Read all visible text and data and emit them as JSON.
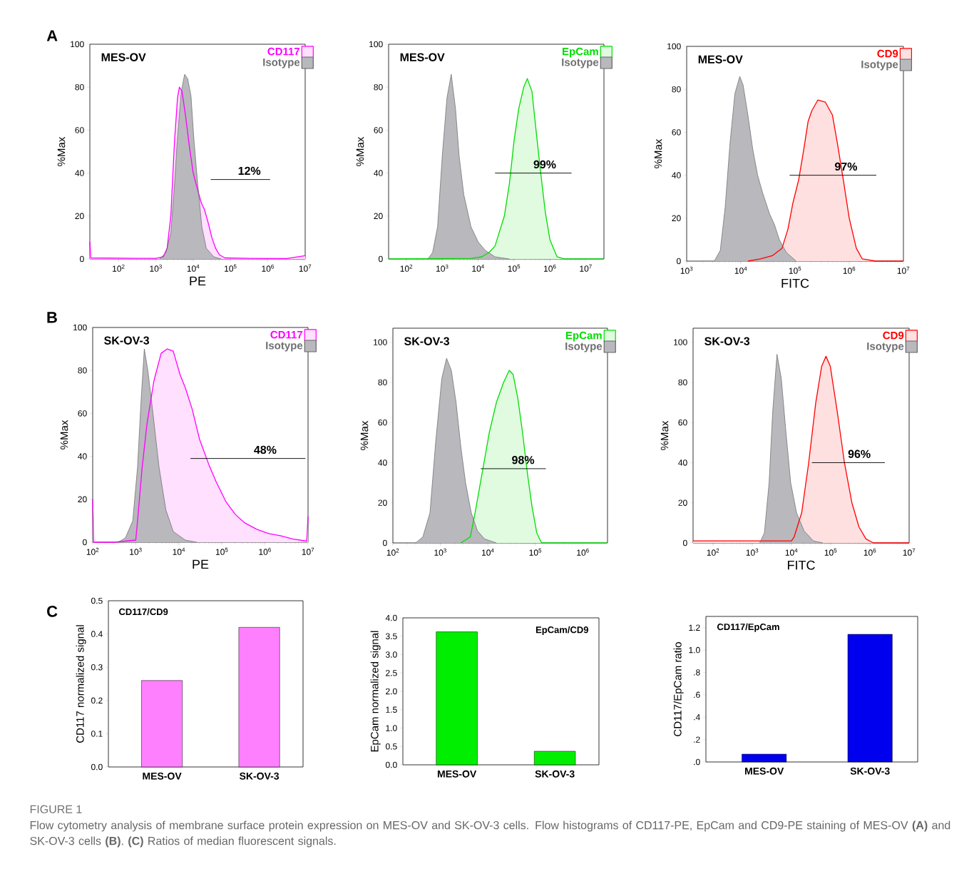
{
  "chart_data": [
    {
      "type": "area",
      "title": "A",
      "subtitle": "MES-OV",
      "xlabel": "PE",
      "ylabel": "%Max",
      "log": "x",
      "legend": "top right",
      "xlim": [
        17,
        10000000
      ],
      "ylim": [
        0,
        100
      ],
      "xticks": [
        {
          "value": 100,
          "label": "10$^{2}$"
        },
        {
          "value": 1000,
          "label": "10$^{3}$"
        },
        {
          "value": 10000,
          "label": "10$^{4}$"
        },
        {
          "value": 100000,
          "label": "10$^{5}$"
        },
        {
          "value": 1000000,
          "label": "10$^{6}$"
        },
        {
          "value": 10000000,
          "label": "10$^{7}$"
        }
      ],
      "yticks": [
        0,
        20,
        40,
        60,
        80,
        100
      ],
      "series": [
        {
          "name": "CD117",
          "color": "#ff00ff",
          "x": [
            17,
            18,
            316,
            1000,
            1580,
            2000,
            2510,
            3160,
            3800,
            4270,
            5010,
            6310,
            7940,
            10000,
            13200,
            16600,
            20000,
            25100,
            31600,
            39800,
            50100,
            70800,
            316000,
            3160000,
            10000000
          ],
          "values": [
            8,
            0.5,
            0.3,
            0.3,
            1,
            5,
            20,
            55,
            75,
            80,
            78,
            66,
            52,
            40,
            32,
            26,
            23,
            17,
            10,
            5,
            2,
            0.5,
            0.3,
            0.2,
            1.5
          ]
        },
        {
          "name": "Isotype",
          "color": "#b9b8bd",
          "x": [
            1260,
            1860,
            2510,
            3160,
            3720,
            4790,
            5890,
            7080,
            8710,
            10500,
            13200,
            17000,
            22400,
            35500,
            56200
          ],
          "values": [
            0,
            3,
            12,
            35,
            55,
            78,
            86,
            84,
            76,
            55,
            35,
            15,
            5,
            1,
            0
          ]
        },
        {
          "type": "line",
          "color": "#000000",
          "x": [
            29500,
            1150000
          ],
          "values": [
            37,
            37
          ]
        }
      ],
      "annotations": [
        "12%"
      ]
    },
    {
      "type": "area",
      "subtitle": "MES-OV",
      "ylabel": "%Max",
      "log": "x",
      "legend": "top right",
      "xlim": [
        32,
        32000000
      ],
      "ylim": [
        0,
        100
      ],
      "xticks": [
        {
          "value": 100,
          "label": "10$^{2}$"
        },
        {
          "value": 1000,
          "label": "10$^{3}$"
        },
        {
          "value": 10000,
          "label": "10$^{4}$"
        },
        {
          "value": 100000,
          "label": "10$^{5}$"
        },
        {
          "value": 1000000,
          "label": "10$^{6}$"
        },
        {
          "value": 10000000,
          "label": "10$^{7}$"
        }
      ],
      "yticks": [
        0,
        20,
        40,
        60,
        80,
        100
      ],
      "series": [
        {
          "name": "EpCam",
          "color": "#00dd00",
          "x": [
            32,
            6310,
            12600,
            20000,
            29500,
            53700,
            74100,
            100000,
            135000,
            186000,
            234000,
            316000,
            398000,
            537000,
            741000,
            1000000,
            1580000,
            2510000,
            31600000
          ],
          "values": [
            0,
            0.3,
            1,
            3,
            6,
            20,
            35,
            55,
            70,
            80,
            84,
            78,
            62,
            42,
            22,
            9,
            1,
            0,
            0
          ]
        },
        {
          "name": "Isotype",
          "color": "#b9b8bd",
          "x": [
            398,
            537,
            741,
            1000,
            1350,
            1780,
            2340,
            2950,
            3980,
            6310,
            10000,
            15800,
            29500,
            74100
          ],
          "values": [
            0,
            3,
            15,
            48,
            75,
            86,
            70,
            48,
            30,
            15,
            8,
            4,
            1,
            0
          ]
        },
        {
          "type": "line",
          "color": "#000000",
          "x": [
            29500,
            4000000
          ],
          "values": [
            40,
            40
          ]
        }
      ],
      "annotations": [
        "99%"
      ]
    },
    {
      "type": "area",
      "subtitle": "MES-OV",
      "xlabel": "FITC",
      "ylabel": "%Max",
      "log": "x",
      "legend": "top right",
      "xlim": [
        1000,
        10000000
      ],
      "ylim": [
        0,
        100
      ],
      "xticks": [
        {
          "value": 1000,
          "label": "10$^{3}$"
        },
        {
          "value": 10000,
          "label": "10$^{4}$"
        },
        {
          "value": 100000,
          "label": "10$^{5}$"
        },
        {
          "value": 1000000,
          "label": "10$^{6}$"
        },
        {
          "value": 10000000,
          "label": "10$^{7}$"
        }
      ],
      "yticks": [
        0,
        20,
        40,
        60,
        80,
        100
      ],
      "series": [
        {
          "name": "CD9",
          "color": "#ff0000",
          "x": [
            13500,
            22900,
            38000,
            57500,
            74100,
            91200,
            117000,
            145000,
            174000,
            204000,
            263000,
            363000,
            490000,
            603000,
            776000,
            1000000,
            1350000,
            1740000,
            3090000,
            10000000
          ],
          "values": [
            0,
            1,
            2.5,
            6,
            15,
            27,
            38,
            52,
            65,
            70,
            75,
            74,
            68,
            55,
            38,
            20,
            6,
            1,
            0,
            0
          ]
        },
        {
          "name": "Isotype",
          "color": "#b9b8bd",
          "x": [
            3240,
            4170,
            5130,
            6310,
            7760,
            9550,
            11000,
            13500,
            16600,
            20400,
            25100,
            33900,
            41700,
            51300,
            69200,
            105000
          ],
          "values": [
            0,
            5,
            25,
            55,
            78,
            86,
            82,
            68,
            52,
            40,
            32,
            22,
            17,
            10,
            4,
            0
          ]
        },
        {
          "type": "line",
          "color": "#000000",
          "x": [
            79400,
            3160000
          ],
          "values": [
            40,
            40
          ]
        }
      ],
      "annotations": [
        "97%"
      ]
    },
    {
      "type": "area",
      "title": "B",
      "subtitle": "SK-OV-3",
      "xlabel": "PE",
      "ylabel": "%Max",
      "log": "x",
      "legend": "top right",
      "xlim": [
        100,
        10000000
      ],
      "ylim": [
        0,
        100
      ],
      "xticks": [
        {
          "value": 100,
          "label": "10$^{2}$"
        },
        {
          "value": 1000,
          "label": "10$^{3}$"
        },
        {
          "value": 10000,
          "label": "10$^{4}$"
        },
        {
          "value": 100000,
          "label": "10$^{5}$"
        },
        {
          "value": 1000000,
          "label": "10$^{6}$"
        },
        {
          "value": 10000000,
          "label": "10$^{7}$"
        }
      ],
      "yticks": [
        0,
        20,
        40,
        60,
        80,
        100
      ],
      "series": [
        {
          "name": "CD117",
          "color": "#ff00ff",
          "x": [
            100,
            105,
            316,
            1000,
            1100,
            1410,
            1820,
            2630,
            3890,
            5370,
            7410,
            10700,
            14100,
            20400,
            30200,
            50100,
            74100,
            123000,
            204000,
            339000,
            646000,
            1230000,
            2290000,
            4370000,
            9330000,
            10000000
          ],
          "values": [
            20,
            0,
            0,
            1,
            10,
            35,
            55,
            75,
            88,
            90,
            89,
            78,
            72,
            62,
            48,
            36,
            28,
            19,
            13,
            9,
            6,
            4,
            3,
            1.5,
            0.5,
            12
          ]
        },
        {
          "name": "Isotype",
          "color": "#b9b8bd",
          "x": [
            389,
            575,
            851,
            1100,
            1320,
            1580,
            1910,
            2510,
            3470,
            5010,
            7410,
            14100,
            26300
          ],
          "values": [
            0,
            2,
            10,
            35,
            65,
            90,
            80,
            60,
            35,
            15,
            5,
            1,
            0
          ]
        },
        {
          "type": "line",
          "color": "#000000",
          "x": [
            18600,
            8710000
          ],
          "values": [
            39,
            39
          ]
        }
      ],
      "annotations": [
        "48%"
      ]
    },
    {
      "type": "area",
      "subtitle": "SK-OV-3",
      "ylabel": "%Max",
      "log": "x",
      "legend": "top right",
      "xlim": [
        100,
        3300000
      ],
      "ylim": [
        0,
        107
      ],
      "xticks": [
        {
          "value": 100,
          "label": "10$^{2}$"
        },
        {
          "value": 1000,
          "label": "10$^{3}$"
        },
        {
          "value": 10000,
          "label": "10$^{4}$"
        },
        {
          "value": 100000,
          "label": "10$^{5}$"
        },
        {
          "value": 1000000,
          "label": "10$^{6}$"
        }
      ],
      "yticks": [
        0,
        20,
        40,
        60,
        80,
        100
      ],
      "series": [
        {
          "name": "EpCam",
          "color": "#00dd00",
          "x": [
            2690,
            4270,
            5370,
            7590,
            10700,
            15100,
            21400,
            28200,
            33900,
            42700,
            53700,
            67600,
            85100,
            107000,
            135000,
            3160000
          ],
          "values": [
            0,
            3,
            15,
            35,
            55,
            70,
            80,
            86,
            84,
            72,
            55,
            35,
            18,
            5,
            0,
            0
          ]
        },
        {
          "name": "Isotype",
          "color": "#b9b8bd",
          "x": [
            302,
            427,
            603,
            794,
            1070,
            1350,
            1700,
            2140,
            2690,
            3390,
            4470,
            6030,
            8510,
            15100
          ],
          "values": [
            0,
            3,
            15,
            50,
            82,
            92,
            86,
            70,
            48,
            30,
            15,
            6,
            2,
            0
          ]
        },
        {
          "type": "line",
          "color": "#000000",
          "x": [
            7080,
            166000
          ],
          "values": [
            37,
            37
          ]
        }
      ],
      "annotations": [
        "98%"
      ]
    },
    {
      "type": "area",
      "subtitle": "SK-OV-3",
      "xlabel": "FITC",
      "ylabel": "%Max",
      "log": "x",
      "legend": "top right",
      "xlim": [
        31,
        10000000
      ],
      "ylim": [
        0,
        107
      ],
      "xticks": [
        {
          "value": 100,
          "label": "10$^{2}$"
        },
        {
          "value": 1000,
          "label": "10$^{3}$"
        },
        {
          "value": 10000,
          "label": "10$^{4}$"
        },
        {
          "value": 100000,
          "label": "10$^{5}$"
        },
        {
          "value": 1000000,
          "label": "10$^{6}$"
        },
        {
          "value": 10000000,
          "label": "10$^{7}$"
        }
      ],
      "yticks": [
        0,
        20,
        40,
        60,
        80,
        100
      ],
      "series": [
        {
          "name": "CD9",
          "color": "#ff0000",
          "x": [
            31,
            10000,
            11700,
            18200,
            27500,
            41700,
            58900,
            75900,
            97700,
            148000,
            224000,
            347000,
            525000,
            794000,
            1230000,
            10000000
          ],
          "values": [
            1,
            1,
            3,
            15,
            40,
            70,
            88,
            93,
            88,
            65,
            40,
            20,
            8,
            2,
            0,
            0
          ]
        },
        {
          "name": "Isotype",
          "color": "#b9b8bd",
          "x": [
            1550,
            2040,
            2690,
            3310,
            4270,
            5500,
            7240,
            9550,
            13500,
            20900,
            36300,
            63100
          ],
          "values": [
            0,
            5,
            30,
            65,
            94,
            82,
            55,
            30,
            15,
            6,
            1,
            0
          ]
        },
        {
          "type": "line",
          "color": "#000000",
          "x": [
            33100,
            2400000
          ],
          "values": [
            40,
            40
          ]
        }
      ],
      "annotations": [
        "96%"
      ]
    },
    {
      "type": "bar",
      "title": "C",
      "subtitle": "CD117/CD9",
      "ylabel": "CD117 normalized signal",
      "categories": [
        "MES-OV",
        "SK-OV-3"
      ],
      "values": [
        0.26,
        0.42
      ],
      "color": "#ff80ff",
      "ylim": [
        0,
        0.5
      ],
      "yticks": [
        {
          "value": 0,
          "label": "0.0"
        },
        0.1,
        0.2,
        0.3,
        0.4,
        0.5
      ]
    },
    {
      "type": "bar",
      "subtitle": "EpCam/CD9",
      "ylabel": "EpCam normalized signal",
      "categories": [
        "MES-OV",
        "SK-OV-3"
      ],
      "values": [
        3.62,
        0.37
      ],
      "color": "#00ee00",
      "ylim": [
        0,
        4.0
      ],
      "yticks": [
        {
          "value": 0,
          "label": "0.0"
        },
        0.5,
        {
          "value": 1,
          "label": "1.0"
        },
        1.5,
        {
          "value": 2,
          "label": "2.0"
        },
        2.5,
        {
          "value": 3,
          "label": "3.0"
        },
        3.5,
        {
          "value": 4,
          "label": "4.0"
        }
      ]
    },
    {
      "type": "bar",
      "subtitle": "CD117/EpCam",
      "ylabel": "CD117/EpCam ratio",
      "categories": [
        "MES-OV",
        "SK-OV-3"
      ],
      "values": [
        0.07,
        1.14
      ],
      "color": "#0000ee",
      "ylim": [
        0,
        1.3
      ],
      "yticks": [
        {
          "value": 0,
          "label": ".0"
        },
        {
          "value": 0.2,
          "label": ".2"
        },
        {
          "value": 0.4,
          "label": ".4"
        },
        {
          "value": 0.6,
          "label": ".6"
        },
        {
          "value": 0.8,
          "label": ".8"
        },
        {
          "value": 1.0,
          "label": "1.0"
        },
        {
          "value": 1.2,
          "label": "1.2"
        }
      ]
    },
    {
      "type": "other",
      "annotations": [
        "FIGURE 1",
        "Flow cytometry analysis of membrane surface protein expression on MES-OV and SK-OV-3 cells. Flow histograms of CD117-PE, EpCam and CD9-PE staining of MES-OV **(A)** and SK-OV-3 cells **(B)**. **(C)** Ratios of median fluorescent signals."
      ]
    }
  ]
}
